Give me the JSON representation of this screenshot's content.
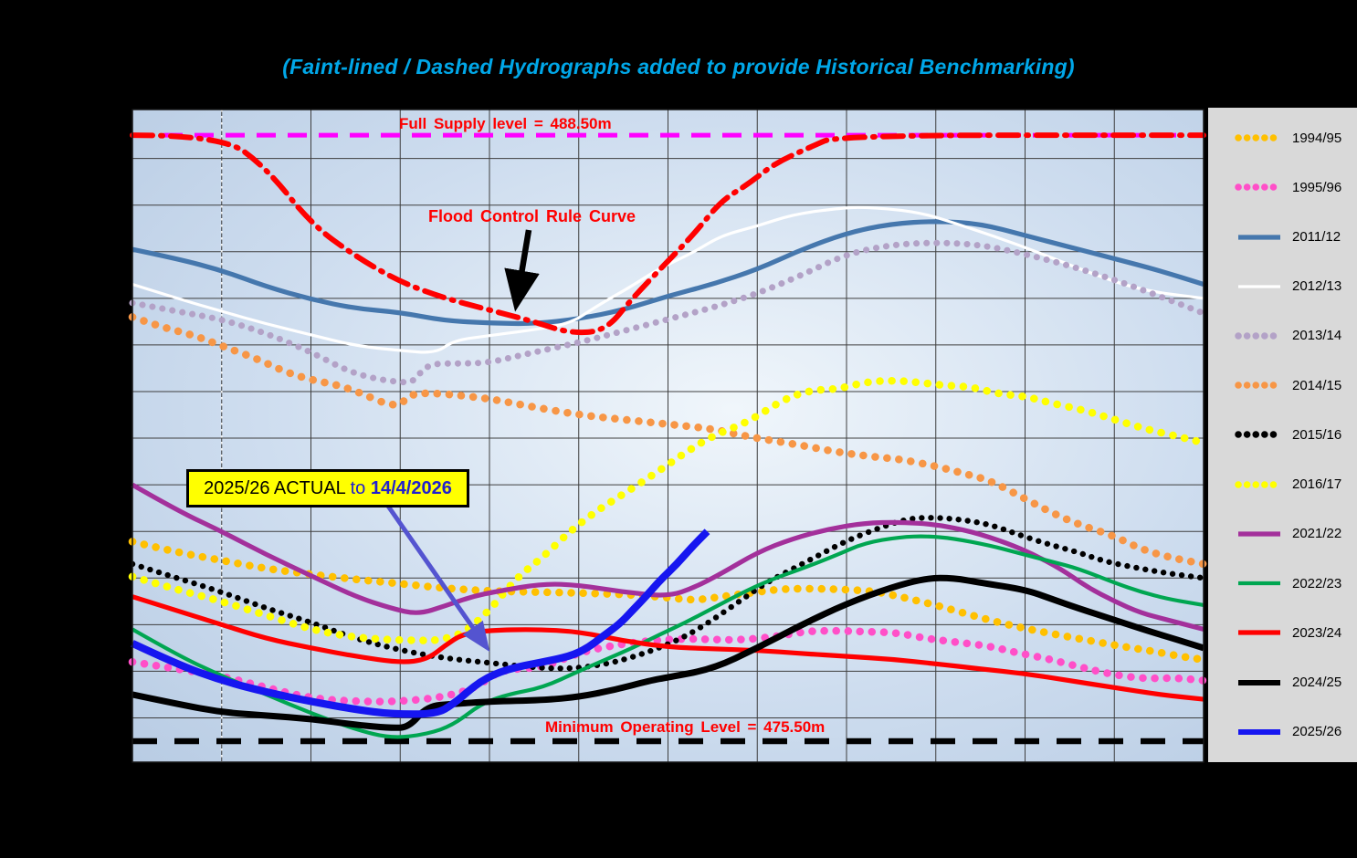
{
  "title": "(Faint-lined / Dashed Hydrographs added to provide Historical Benchmarking)",
  "colors": {
    "background": "#000000",
    "plot_edge": "#B7CBE3",
    "plot_center": "#F0F6FB",
    "gridline": "#3E3E3E",
    "title_text": "#00A7E8",
    "annotation_red": "#FF0000",
    "legend_bg": "#D9D9D9",
    "callout_bg": "#FFFF00",
    "callout_blue_text": "#2020CF",
    "callout_arrow": "#5454D0",
    "full_supply_line": "#FF00FF",
    "min_operating_line": "#000000",
    "rule_curve_line": "#FF0000",
    "date_marker": "#FFFFFF"
  },
  "annotations": {
    "full_supply": "Full Supply level = 488.50m",
    "flood": "Flood Control Rule Curve",
    "callout_part1": "2025/26 ACTUAL ",
    "callout_part2": "to ",
    "callout_part3": "14/4/2026",
    "min_op": "Minimum Operating Level = 475.50m"
  },
  "legend": {
    "entries": [
      {
        "label": "1994/95",
        "color": "#FFC000",
        "style": "dots-large"
      },
      {
        "label": "1995/96",
        "color": "#FF4FC8",
        "style": "dots-large"
      },
      {
        "label": "2011/12",
        "color": "#4577AD",
        "style": "solid-bold"
      },
      {
        "label": "2012/13",
        "color": "#FFFFFF",
        "style": "solid-thin"
      },
      {
        "label": "2013/14",
        "color": "#B3A2C7",
        "style": "dots-medium"
      },
      {
        "label": "2014/15",
        "color": "#F79646",
        "style": "dots-large"
      },
      {
        "label": "2015/16",
        "color": "#000000",
        "style": "dots-small"
      },
      {
        "label": "2016/17",
        "color": "#FFFF00",
        "style": "dots-large"
      },
      {
        "label": "2021/22",
        "color": "#A3309B",
        "style": "solid-bold"
      },
      {
        "label": "2022/23",
        "color": "#00A651",
        "style": "solid-medium"
      },
      {
        "label": "2023/24",
        "color": "#FF0000",
        "style": "solid-bold"
      },
      {
        "label": "2024/25",
        "color": "#000000",
        "style": "solid-heavy"
      },
      {
        "label": "2025/26",
        "color": "#1616F0",
        "style": "solid-max"
      }
    ]
  },
  "chart_data": {
    "type": "line",
    "x_axis": {
      "units": "months",
      "range": [
        0,
        12
      ],
      "gridline_every": 1
    },
    "y_axis": {
      "units": "metres reservoir level",
      "range": [
        475.05,
        489.05
      ],
      "gridline_every": 1
    },
    "reference_lines": [
      {
        "name": "Full Supply Level",
        "level": 488.5,
        "color": "#FF00FF",
        "style": "dash-long"
      },
      {
        "name": "Minimum Operating Level",
        "level": 475.5,
        "color": "#000000",
        "style": "dash-heavy"
      }
    ],
    "date_marker_month": 1,
    "rule_curve": {
      "name": "Flood Control Rule Curve",
      "color": "#FF0000",
      "style": "dashdot",
      "x": [
        0,
        1,
        1.5,
        2,
        2.5,
        3,
        3.5,
        4,
        4.5,
        4.9,
        5.3,
        5.6,
        6,
        6.3,
        6.6,
        6.9,
        7.2,
        7.6,
        7.9,
        12
      ],
      "v": [
        488.5,
        488.5,
        487.8,
        486.6,
        485.9,
        485.35,
        485.0,
        484.75,
        484.5,
        484.25,
        484.3,
        485.0,
        485.8,
        486.4,
        487.1,
        487.45,
        487.9,
        488.25,
        488.5,
        488.5
      ]
    },
    "series": [
      {
        "name": "1994/95",
        "color": "#FFC000",
        "style": "dots-large",
        "x": [
          0,
          0.5,
          1,
          1.5,
          2,
          2.5,
          3,
          3.5,
          4,
          4.5,
          5,
          5.5,
          6,
          6.3,
          6.6,
          7,
          7.3,
          7.7,
          8,
          8.3,
          8.6,
          9,
          9.4,
          9.8,
          10.2,
          10.6,
          11,
          11.4,
          11.8,
          12
        ],
        "v": [
          479.78,
          479.55,
          479.38,
          479.2,
          479.08,
          478.97,
          478.88,
          478.78,
          478.72,
          478.7,
          478.68,
          478.65,
          478.58,
          478.52,
          478.6,
          478.7,
          478.77,
          478.77,
          478.75,
          478.72,
          478.6,
          478.42,
          478.2,
          478.0,
          477.84,
          477.7,
          477.56,
          477.44,
          477.3,
          477.25
        ]
      },
      {
        "name": "1995/96",
        "color": "#FF4FC8",
        "style": "dots-large",
        "x": [
          0,
          0.5,
          1,
          1.5,
          2,
          2.5,
          3,
          3.5,
          3.85,
          4.1,
          4.35,
          4.6,
          5,
          5.4,
          5.8,
          6.2,
          6.5,
          6.8,
          7.2,
          7.55,
          7.9,
          8.2,
          8.55,
          8.9,
          9.2,
          9.6,
          9.9,
          10.25,
          10.6,
          10.9,
          11.3,
          11.7,
          12
        ],
        "v": [
          477.2,
          477.05,
          476.9,
          476.65,
          476.42,
          476.35,
          476.35,
          476.45,
          476.65,
          477.0,
          477.06,
          477.08,
          477.4,
          477.56,
          477.66,
          477.7,
          477.68,
          477.67,
          477.74,
          477.86,
          477.87,
          477.85,
          477.83,
          477.7,
          477.63,
          477.54,
          477.4,
          477.27,
          477.1,
          476.96,
          476.84,
          476.86,
          476.8
        ]
      },
      {
        "name": "2011/12",
        "color": "#4577AD",
        "style": "solid-bold",
        "x": [
          0,
          0.5,
          1,
          1.5,
          2,
          2.5,
          3,
          3.5,
          4,
          4.5,
          5,
          5.5,
          6,
          6.5,
          7,
          7.5,
          8,
          8.5,
          9,
          9.5,
          10,
          10.5,
          11,
          11.5,
          12
        ],
        "v": [
          486.05,
          485.85,
          485.6,
          485.25,
          484.98,
          484.78,
          484.7,
          484.52,
          484.47,
          484.45,
          484.56,
          484.75,
          485.05,
          485.3,
          485.62,
          486.05,
          486.4,
          486.6,
          486.66,
          486.6,
          486.35,
          486.1,
          485.85,
          485.6,
          485.3
        ]
      },
      {
        "name": "2012/13",
        "color": "#FFFFFF",
        "style": "solid-thin",
        "x": [
          0,
          0.5,
          1,
          1.5,
          2,
          2.5,
          3,
          3.4,
          3.6,
          4,
          4.4,
          4.9,
          5.2,
          5.6,
          5.9,
          6.3,
          6.6,
          7,
          7.4,
          7.9,
          8.2,
          8.8,
          9.3,
          10,
          10.7,
          11.3,
          12
        ],
        "v": [
          485.3,
          485.0,
          484.72,
          484.45,
          484.22,
          483.98,
          483.88,
          483.82,
          484.1,
          484.2,
          484.3,
          484.45,
          484.83,
          485.27,
          485.64,
          486.0,
          486.35,
          486.55,
          486.8,
          486.93,
          486.96,
          486.86,
          486.56,
          486.1,
          485.56,
          485.17,
          485.0
        ]
      },
      {
        "name": "2013/14",
        "color": "#B3A2C7",
        "style": "dots-medium",
        "x": [
          0,
          0.5,
          1,
          1.5,
          2,
          2.4,
          2.7,
          3,
          3.15,
          3.3,
          3.7,
          4,
          4.4,
          5,
          5.5,
          6,
          6.5,
          7,
          7.5,
          8,
          8.5,
          9,
          9.5,
          10,
          10.5,
          11,
          11.5,
          12
        ],
        "v": [
          484.9,
          484.72,
          484.55,
          484.25,
          483.85,
          483.45,
          483.28,
          483.2,
          483.2,
          483.6,
          483.6,
          483.62,
          483.8,
          484.05,
          484.3,
          484.55,
          484.8,
          485.1,
          485.5,
          485.95,
          486.15,
          486.2,
          486.15,
          485.95,
          485.7,
          485.4,
          485.05,
          484.68
        ]
      },
      {
        "name": "2014/15",
        "color": "#F79646",
        "style": "dots-large",
        "x": [
          0,
          0.3,
          0.7,
          1,
          1.4,
          1.7,
          2,
          2.4,
          2.97,
          3.1,
          3.4,
          4,
          4.4,
          5,
          5.5,
          6,
          6.5,
          6.9,
          7.4,
          7.9,
          8.3,
          8.6,
          9,
          9.3,
          9.6,
          10,
          10.3,
          10.6,
          11,
          11.3,
          11.6,
          12
        ],
        "v": [
          484.6,
          484.4,
          484.2,
          483.98,
          483.7,
          483.43,
          483.25,
          483.1,
          482.62,
          482.95,
          482.97,
          482.85,
          482.7,
          482.5,
          482.4,
          482.3,
          482.2,
          482.03,
          481.88,
          481.7,
          481.6,
          481.55,
          481.4,
          481.25,
          481.1,
          480.7,
          480.4,
          480.15,
          479.9,
          479.62,
          479.45,
          479.3
        ]
      },
      {
        "name": "2015/16",
        "color": "#000000",
        "style": "dots-small",
        "x": [
          0,
          0.5,
          1,
          1.5,
          2,
          2.5,
          3,
          3.5,
          4,
          4.5,
          4.9,
          5.3,
          5.6,
          5.9,
          6.2,
          6.5,
          6.8,
          7.1,
          7.4,
          7.7,
          8,
          8.4,
          8.7,
          9,
          9.3,
          9.6,
          9.9,
          10.25,
          10.6,
          10.9,
          11.3,
          11.6,
          12
        ],
        "v": [
          479.3,
          479.0,
          478.7,
          478.35,
          478.05,
          477.7,
          477.45,
          477.28,
          477.18,
          477.08,
          477.05,
          477.15,
          477.3,
          477.5,
          477.75,
          478.1,
          478.5,
          478.9,
          479.2,
          479.5,
          479.8,
          480.1,
          480.28,
          480.3,
          480.25,
          480.15,
          479.95,
          479.73,
          479.55,
          479.35,
          479.2,
          479.1,
          479.0
        ]
      },
      {
        "name": "2016/17",
        "color": "#FFFF00",
        "style": "dots-large",
        "x": [
          0,
          0.5,
          1,
          1.5,
          2,
          2.4,
          2.8,
          3.2,
          3.42,
          3.7,
          4,
          4.3,
          4.6,
          4.9,
          5.2,
          5.5,
          5.9,
          6.2,
          6.5,
          6.9,
          7.3,
          7.6,
          7.9,
          8.2,
          8.5,
          8.8,
          9.1,
          9.4,
          9.7,
          10,
          10.3,
          10.66,
          11,
          11.34,
          11.68,
          12
        ],
        "v": [
          479.03,
          478.75,
          478.5,
          478.2,
          477.9,
          477.75,
          477.68,
          477.66,
          477.66,
          477.8,
          478.3,
          479.0,
          479.45,
          480.0,
          480.44,
          480.8,
          481.3,
          481.7,
          482.05,
          482.35,
          482.84,
          483.03,
          483.05,
          483.2,
          483.24,
          483.2,
          483.13,
          483.1,
          482.95,
          482.9,
          482.75,
          482.6,
          482.4,
          482.2,
          482.05,
          481.9
        ]
      },
      {
        "name": "2021/22",
        "color": "#A3309B",
        "style": "solid-bold",
        "x": [
          0,
          0.5,
          1,
          1.5,
          2,
          2.5,
          2.9,
          3.2,
          3.5,
          3.8,
          4.1,
          4.6,
          5,
          5.5,
          6,
          6.3,
          6.6,
          7,
          7.4,
          7.8,
          8.2,
          8.6,
          9,
          9.4,
          9.8,
          10.1,
          10.4,
          10.7,
          11,
          11.3,
          11.6,
          12
        ],
        "v": [
          481.0,
          480.45,
          480.0,
          479.5,
          479.05,
          478.6,
          478.35,
          478.22,
          478.4,
          478.6,
          478.72,
          478.88,
          478.85,
          478.7,
          478.6,
          478.8,
          479.1,
          479.55,
          479.85,
          480.05,
          480.18,
          480.2,
          480.15,
          480.0,
          479.75,
          479.5,
          479.2,
          478.8,
          478.5,
          478.25,
          478.1,
          477.9
        ]
      },
      {
        "name": "2022/23",
        "color": "#00A651",
        "style": "solid-medium",
        "x": [
          0,
          0.5,
          1,
          1.5,
          2,
          2.5,
          2.9,
          3.3,
          3.6,
          3.9,
          4.2,
          4.6,
          5,
          5.3,
          5.6,
          5.9,
          6.2,
          6.5,
          6.9,
          7.2,
          7.5,
          7.9,
          8.2,
          8.6,
          8.9,
          9.2,
          9.6,
          9.9,
          10.3,
          10.6,
          11,
          11.3,
          11.6,
          12
        ],
        "v": [
          477.9,
          477.35,
          476.9,
          476.5,
          476.1,
          475.75,
          475.56,
          475.65,
          475.85,
          476.3,
          476.5,
          476.65,
          477.0,
          477.25,
          477.5,
          477.78,
          478.05,
          478.35,
          478.75,
          479.0,
          479.2,
          479.5,
          479.75,
          479.88,
          479.9,
          479.85,
          479.7,
          479.55,
          479.35,
          479.2,
          478.9,
          478.7,
          478.55,
          478.42
        ]
      },
      {
        "name": "2023/24",
        "color": "#FF0000",
        "style": "solid-bold",
        "x": [
          0,
          0.5,
          1,
          1.5,
          2,
          2.5,
          3,
          3.3,
          3.5,
          3.7,
          4,
          4.5,
          5,
          5.5,
          6,
          6.5,
          7,
          7.5,
          8,
          8.5,
          9,
          9.5,
          10,
          10.5,
          11,
          11.5,
          12
        ],
        "v": [
          478.6,
          478.3,
          478.0,
          477.7,
          477.5,
          477.32,
          477.18,
          477.25,
          477.55,
          477.8,
          477.88,
          477.9,
          477.85,
          477.65,
          477.52,
          477.48,
          477.45,
          477.38,
          477.32,
          477.26,
          477.16,
          477.05,
          476.95,
          476.8,
          476.65,
          476.5,
          476.4
        ]
      },
      {
        "name": "2024/25",
        "color": "#000000",
        "style": "solid-heavy",
        "x": [
          0,
          0.5,
          1,
          1.5,
          2,
          2.5,
          2.9,
          3.1,
          3.3,
          3.6,
          4,
          4.6,
          5,
          5.4,
          5.8,
          6,
          6.5,
          7,
          7.5,
          8,
          8.5,
          8.9,
          9.2,
          9.5,
          10,
          10.3,
          10.6,
          11,
          11.4,
          11.7,
          12
        ],
        "v": [
          476.5,
          476.3,
          476.12,
          476.05,
          475.98,
          475.85,
          475.78,
          475.8,
          476.25,
          476.3,
          476.35,
          476.38,
          476.45,
          476.6,
          476.8,
          476.87,
          477.05,
          477.5,
          478.0,
          478.45,
          478.8,
          479.0,
          479.0,
          478.9,
          478.75,
          478.55,
          478.35,
          478.1,
          477.85,
          477.68,
          477.5
        ]
      },
      {
        "name": "2025/26",
        "color": "#1616F0",
        "style": "solid-max",
        "x": [
          0,
          0.5,
          1,
          1.5,
          2,
          2.5,
          2.9,
          3.4,
          3.6,
          3.9,
          4.2,
          4.6,
          4.9,
          5.1,
          5.27,
          5.45,
          5.6,
          5.75,
          5.91,
          6.1,
          6.26,
          6.44
        ],
        "v": [
          477.6,
          477.15,
          476.8,
          476.55,
          476.35,
          476.18,
          476.08,
          476.08,
          476.3,
          476.8,
          477.05,
          477.2,
          477.32,
          477.5,
          477.75,
          478.0,
          478.3,
          478.6,
          478.95,
          479.3,
          479.65,
          480.0
        ]
      }
    ]
  }
}
